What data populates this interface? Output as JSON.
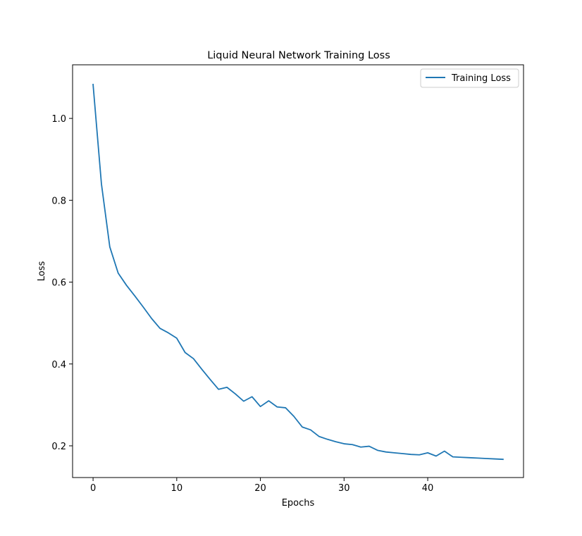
{
  "chart_data": {
    "type": "line",
    "title": "Liquid Neural Network Training Loss",
    "xlabel": "Epochs",
    "ylabel": "Loss",
    "xlim": [
      -2.45,
      51.45
    ],
    "ylim": [
      0.1225,
      1.131
    ],
    "xticks": [
      0,
      10,
      20,
      30,
      40
    ],
    "yticks": [
      0.2,
      0.4,
      0.6,
      0.8,
      1.0
    ],
    "xtick_labels": [
      "0",
      "10",
      "20",
      "30",
      "40"
    ],
    "ytick_labels": [
      "0.2",
      "0.4",
      "0.6",
      "0.8",
      "1.0"
    ],
    "grid": false,
    "legend": "upper-right",
    "series_color": "#1f77b4",
    "series": [
      {
        "name": "Training Loss",
        "x": [
          0,
          1,
          2,
          3,
          4,
          5,
          6,
          7,
          8,
          9,
          10,
          11,
          12,
          13,
          14,
          15,
          16,
          17,
          18,
          19,
          20,
          21,
          22,
          23,
          24,
          25,
          26,
          27,
          28,
          29,
          30,
          31,
          32,
          33,
          34,
          35,
          36,
          37,
          38,
          39,
          40,
          41,
          42,
          43,
          44,
          45,
          46,
          47,
          48,
          49
        ],
        "values": [
          1.083,
          0.84,
          0.686,
          0.622,
          0.592,
          0.566,
          0.539,
          0.511,
          0.487,
          0.476,
          0.463,
          0.428,
          0.413,
          0.387,
          0.362,
          0.338,
          0.343,
          0.327,
          0.309,
          0.32,
          0.296,
          0.31,
          0.295,
          0.293,
          0.272,
          0.246,
          0.239,
          0.223,
          0.216,
          0.21,
          0.205,
          0.203,
          0.197,
          0.199,
          0.189,
          0.185,
          0.183,
          0.181,
          0.179,
          0.178,
          0.183,
          0.175,
          0.187,
          0.173,
          0.172,
          0.171,
          0.17,
          0.169,
          0.168,
          0.167
        ]
      }
    ]
  }
}
